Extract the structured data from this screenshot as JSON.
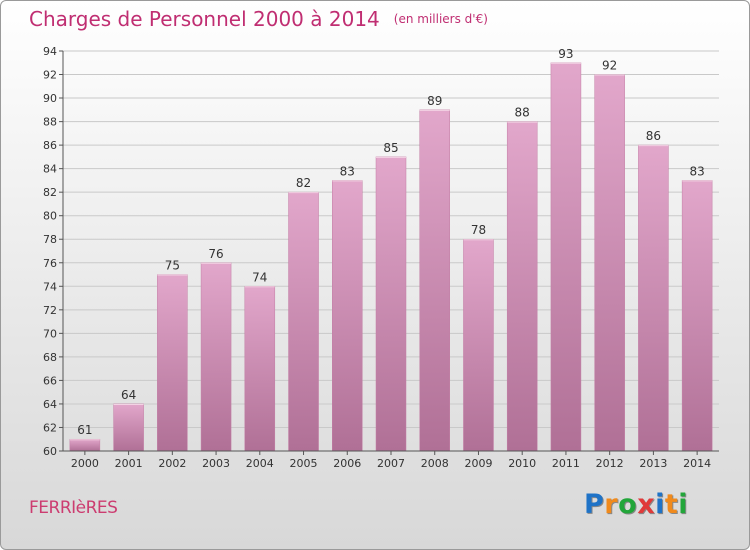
{
  "header": {
    "title": "Charges de Personnel 2000 à 2014",
    "subtitle": "(en milliers d'€)"
  },
  "footer": {
    "town": "FERRIèRES",
    "logo": {
      "letters": [
        "P",
        "r",
        "o",
        "x",
        "i",
        "t",
        "i"
      ],
      "colors": [
        "#1f73c7",
        "#f08a1c",
        "#22a63a",
        "#e03a3a",
        "#1f73c7",
        "#f08a1c",
        "#22a63a"
      ]
    }
  },
  "chart_data": {
    "type": "bar",
    "title": "Charges de Personnel 2000 à 2014",
    "subtitle": "(en milliers d'€)",
    "categories": [
      "2000",
      "2001",
      "2002",
      "2003",
      "2004",
      "2005",
      "2006",
      "2007",
      "2008",
      "2009",
      "2010",
      "2011",
      "2012",
      "2013",
      "2014"
    ],
    "values": [
      61,
      64,
      75,
      76,
      74,
      82,
      83,
      85,
      89,
      78,
      88,
      93,
      92,
      86,
      83
    ],
    "ylim": [
      60,
      94
    ],
    "yticks": [
      60,
      62,
      64,
      66,
      68,
      70,
      72,
      74,
      76,
      78,
      80,
      82,
      84,
      86,
      88,
      90,
      92,
      94
    ],
    "grid": true,
    "colors": {
      "bar_top": "#e2a7cb",
      "bar_bottom": "#b07096",
      "grid": "#c9c9c9",
      "text": "#333333"
    }
  }
}
